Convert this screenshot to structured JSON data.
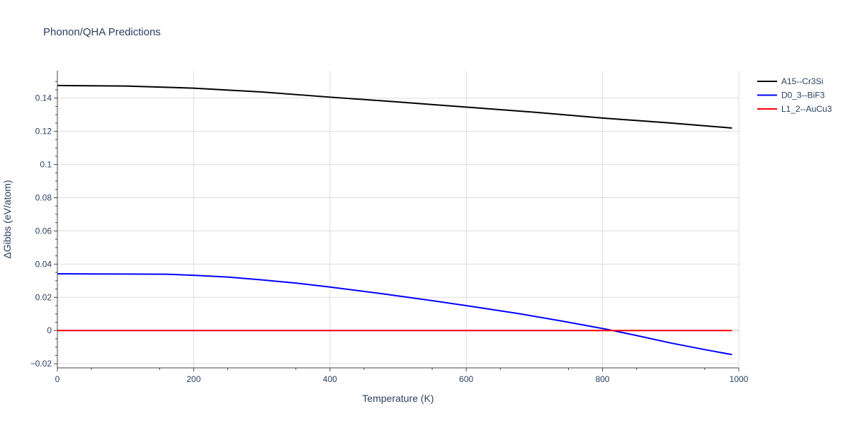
{
  "chart_data": {
    "type": "line",
    "title": "Phonon/QHA Predictions",
    "xlabel": "Temperature (K)",
    "ylabel": "ΔGibbs (eV/atom)",
    "xlim": [
      0,
      1000
    ],
    "ylim": [
      -0.0225,
      0.1565
    ],
    "x_ticks": [
      0,
      200,
      400,
      600,
      800,
      1000
    ],
    "x_tick_labels": [
      "0",
      "200",
      "400",
      "600",
      "800",
      "1000"
    ],
    "y_ticks": [
      -0.02,
      0,
      0.02,
      0.04,
      0.06,
      0.08,
      0.1,
      0.12,
      0.14
    ],
    "y_tick_labels": [
      "−0.02",
      "0",
      "0.02",
      "0.04",
      "0.06",
      "0.08",
      "0.1",
      "0.12",
      "0.14"
    ],
    "grid": true,
    "legend_position": "top-right",
    "series": [
      {
        "name": "A15--Cr3Si",
        "color": "#000000",
        "x": [
          0,
          100,
          200,
          300,
          400,
          500,
          600,
          700,
          800,
          900,
          990
        ],
        "y": [
          0.1476,
          0.1473,
          0.146,
          0.1437,
          0.1406,
          0.1377,
          0.1346,
          0.1315,
          0.128,
          0.125,
          0.122
        ]
      },
      {
        "name": "D0_3--BiF3",
        "color": "#0000ff",
        "x": [
          0,
          50,
          100,
          160,
          200,
          250,
          300,
          350,
          400,
          480,
          550,
          600,
          680,
          750,
          800,
          810,
          850,
          900,
          950,
          990
        ],
        "y": [
          0.0342,
          0.0341,
          0.034,
          0.0339,
          0.0333,
          0.0322,
          0.0305,
          0.0286,
          0.0262,
          0.022,
          0.018,
          0.015,
          0.01,
          0.005,
          0.0012,
          0.0004,
          -0.003,
          -0.0075,
          -0.0115,
          -0.0145
        ]
      },
      {
        "name": "L1_2--AuCu3",
        "color": "#ff0000",
        "x": [
          0,
          990
        ],
        "y": [
          0,
          0
        ]
      }
    ]
  }
}
